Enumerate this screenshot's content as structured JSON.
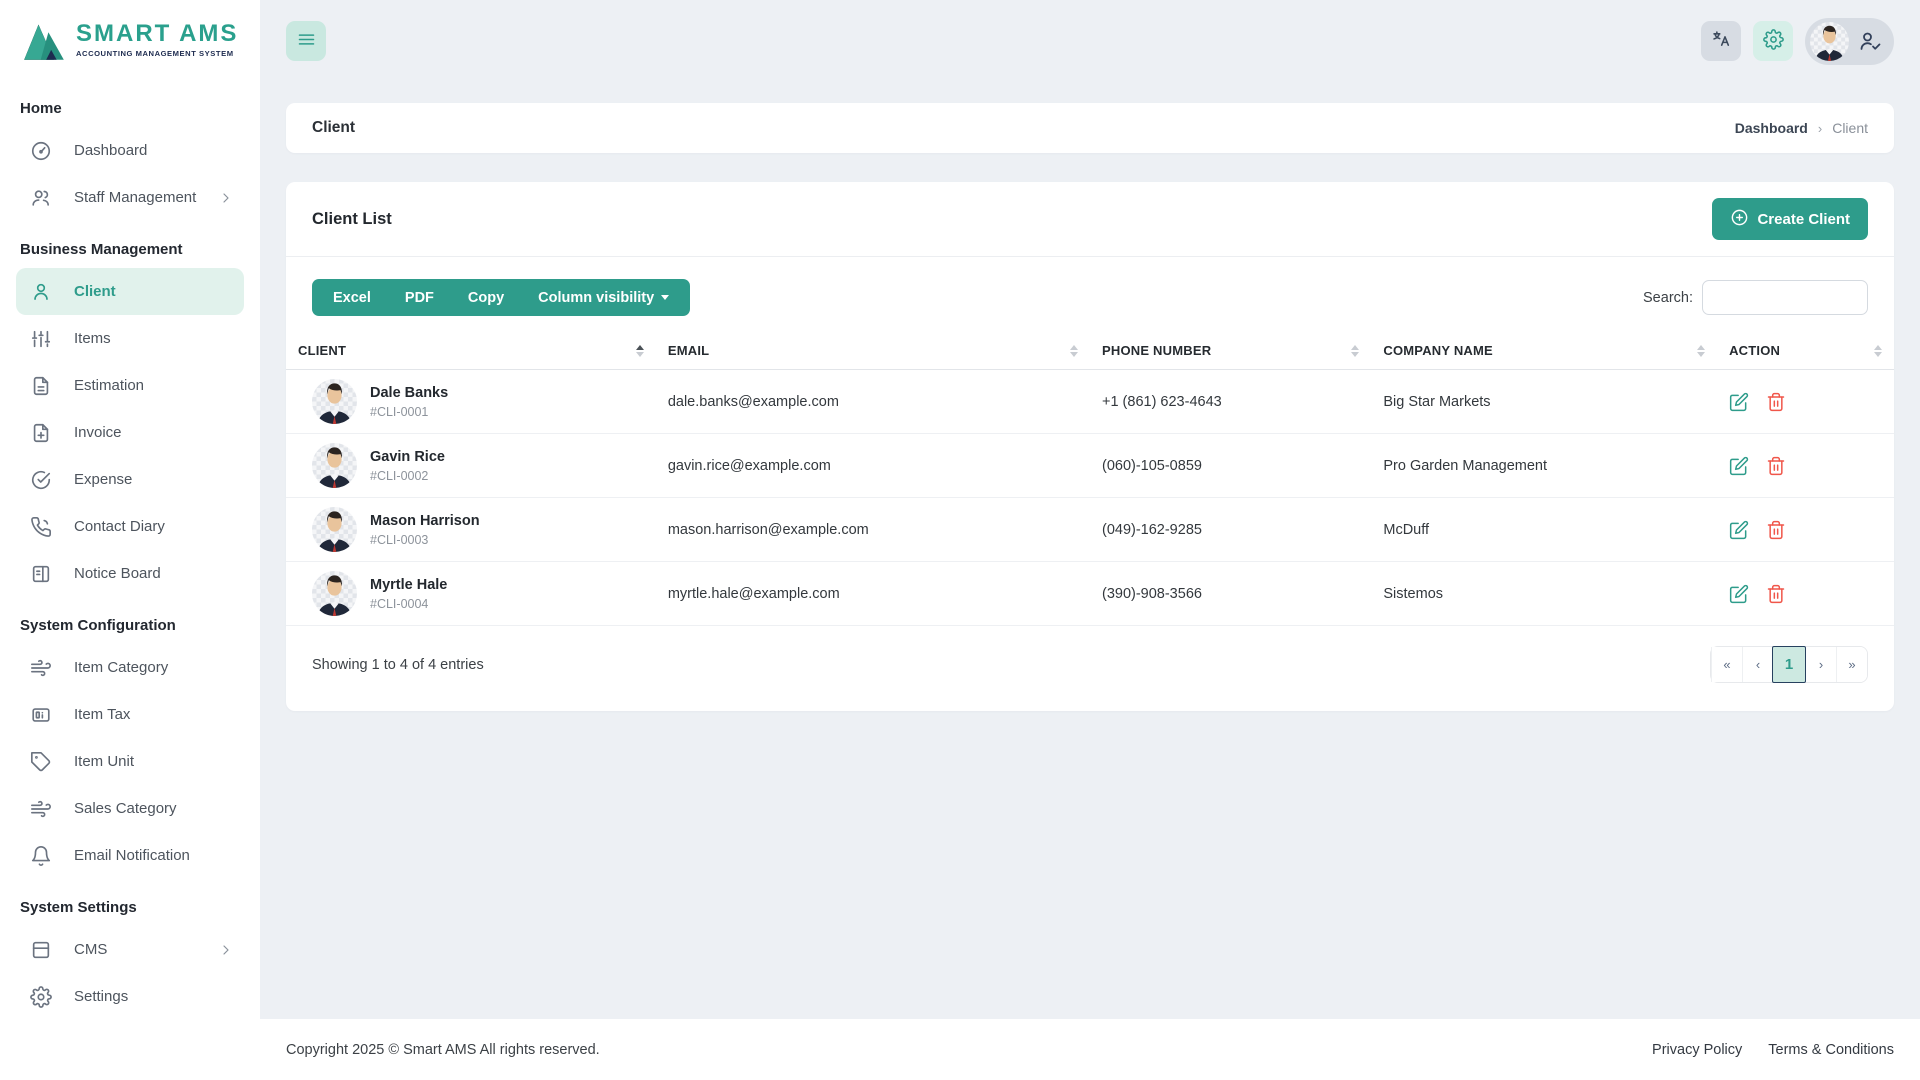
{
  "brand": {
    "name": "SMART AMS",
    "tagline": "ACCOUNTING MANAGEMENT SYSTEM"
  },
  "colors": {
    "accent": "#2e9c8b",
    "accent_light": "#e1f2ec",
    "danger": "#f0564a",
    "navy": "#1d2b4f",
    "page_bg": "#edf0f4"
  },
  "header": {
    "icons": [
      "menu-icon",
      "translate-icon",
      "gear-icon",
      "avatar",
      "user-check-icon"
    ]
  },
  "sidebar": {
    "sections": [
      {
        "title": "Home",
        "items": [
          {
            "label": "Dashboard",
            "icon": "dashboard-icon"
          },
          {
            "label": "Staff Management",
            "icon": "users-icon",
            "chevron": true
          }
        ]
      },
      {
        "title": "Business Management",
        "items": [
          {
            "label": "Client",
            "icon": "user-icon",
            "active": true
          },
          {
            "label": "Items",
            "icon": "sliders-icon"
          },
          {
            "label": "Estimation",
            "icon": "file-text-icon"
          },
          {
            "label": "Invoice",
            "icon": "file-plus-icon"
          },
          {
            "label": "Expense",
            "icon": "check-circle-icon"
          },
          {
            "label": "Contact Diary",
            "icon": "phone-icon"
          },
          {
            "label": "Notice Board",
            "icon": "board-icon"
          }
        ]
      },
      {
        "title": "System Configuration",
        "items": [
          {
            "label": "Item Category",
            "icon": "wind-icon"
          },
          {
            "label": "Item Tax",
            "icon": "card-icon"
          },
          {
            "label": "Item Unit",
            "icon": "tag-icon"
          },
          {
            "label": "Sales Category",
            "icon": "wind-icon"
          },
          {
            "label": "Email Notification",
            "icon": "bell-icon"
          }
        ]
      },
      {
        "title": "System Settings",
        "items": [
          {
            "label": "CMS",
            "icon": "cms-icon",
            "chevron": true
          },
          {
            "label": "Settings",
            "icon": "gear-icon"
          }
        ]
      }
    ]
  },
  "breadcrumb": {
    "title": "Client",
    "link": "Dashboard",
    "separator": "›",
    "current": "Client"
  },
  "client_list": {
    "title": "Client List",
    "create_button": "Create Client",
    "export_buttons": [
      {
        "label": "Excel"
      },
      {
        "label": "PDF"
      },
      {
        "label": "Copy"
      }
    ],
    "column_visibility_label": "Column visibility",
    "search_label": "Search:",
    "search_value": "",
    "columns": [
      {
        "label": "CLIENT",
        "sorted_asc": true
      },
      {
        "label": "EMAIL"
      },
      {
        "label": "PHONE NUMBER"
      },
      {
        "label": "COMPANY NAME"
      },
      {
        "label": "ACTION"
      }
    ],
    "rows": [
      {
        "name": "Dale Banks",
        "code": "#CLI-0001",
        "email": "dale.banks@example.com",
        "phone": "+1 (861) 623-4643",
        "company": "Big Star Markets"
      },
      {
        "name": "Gavin Rice",
        "code": "#CLI-0002",
        "email": "gavin.rice@example.com",
        "phone": "(060)-105-0859",
        "company": "Pro Garden Management"
      },
      {
        "name": "Mason Harrison",
        "code": "#CLI-0003",
        "email": "mason.harrison@example.com",
        "phone": "(049)-162-9285",
        "company": "McDuff"
      },
      {
        "name": "Myrtle Hale",
        "code": "#CLI-0004",
        "email": "myrtle.hale@example.com",
        "phone": "(390)-908-3566",
        "company": "Sistemos"
      }
    ],
    "summary": "Showing 1 to 4 of 4 entries",
    "pagination": [
      {
        "label": "«"
      },
      {
        "label": "‹"
      },
      {
        "label": "1",
        "active": true
      },
      {
        "label": "›"
      },
      {
        "label": "»"
      }
    ]
  },
  "footer": {
    "copyright": "Copyright 2025 © Smart AMS All rights reserved.",
    "links": [
      "Privacy Policy",
      "Terms & Conditions"
    ]
  }
}
